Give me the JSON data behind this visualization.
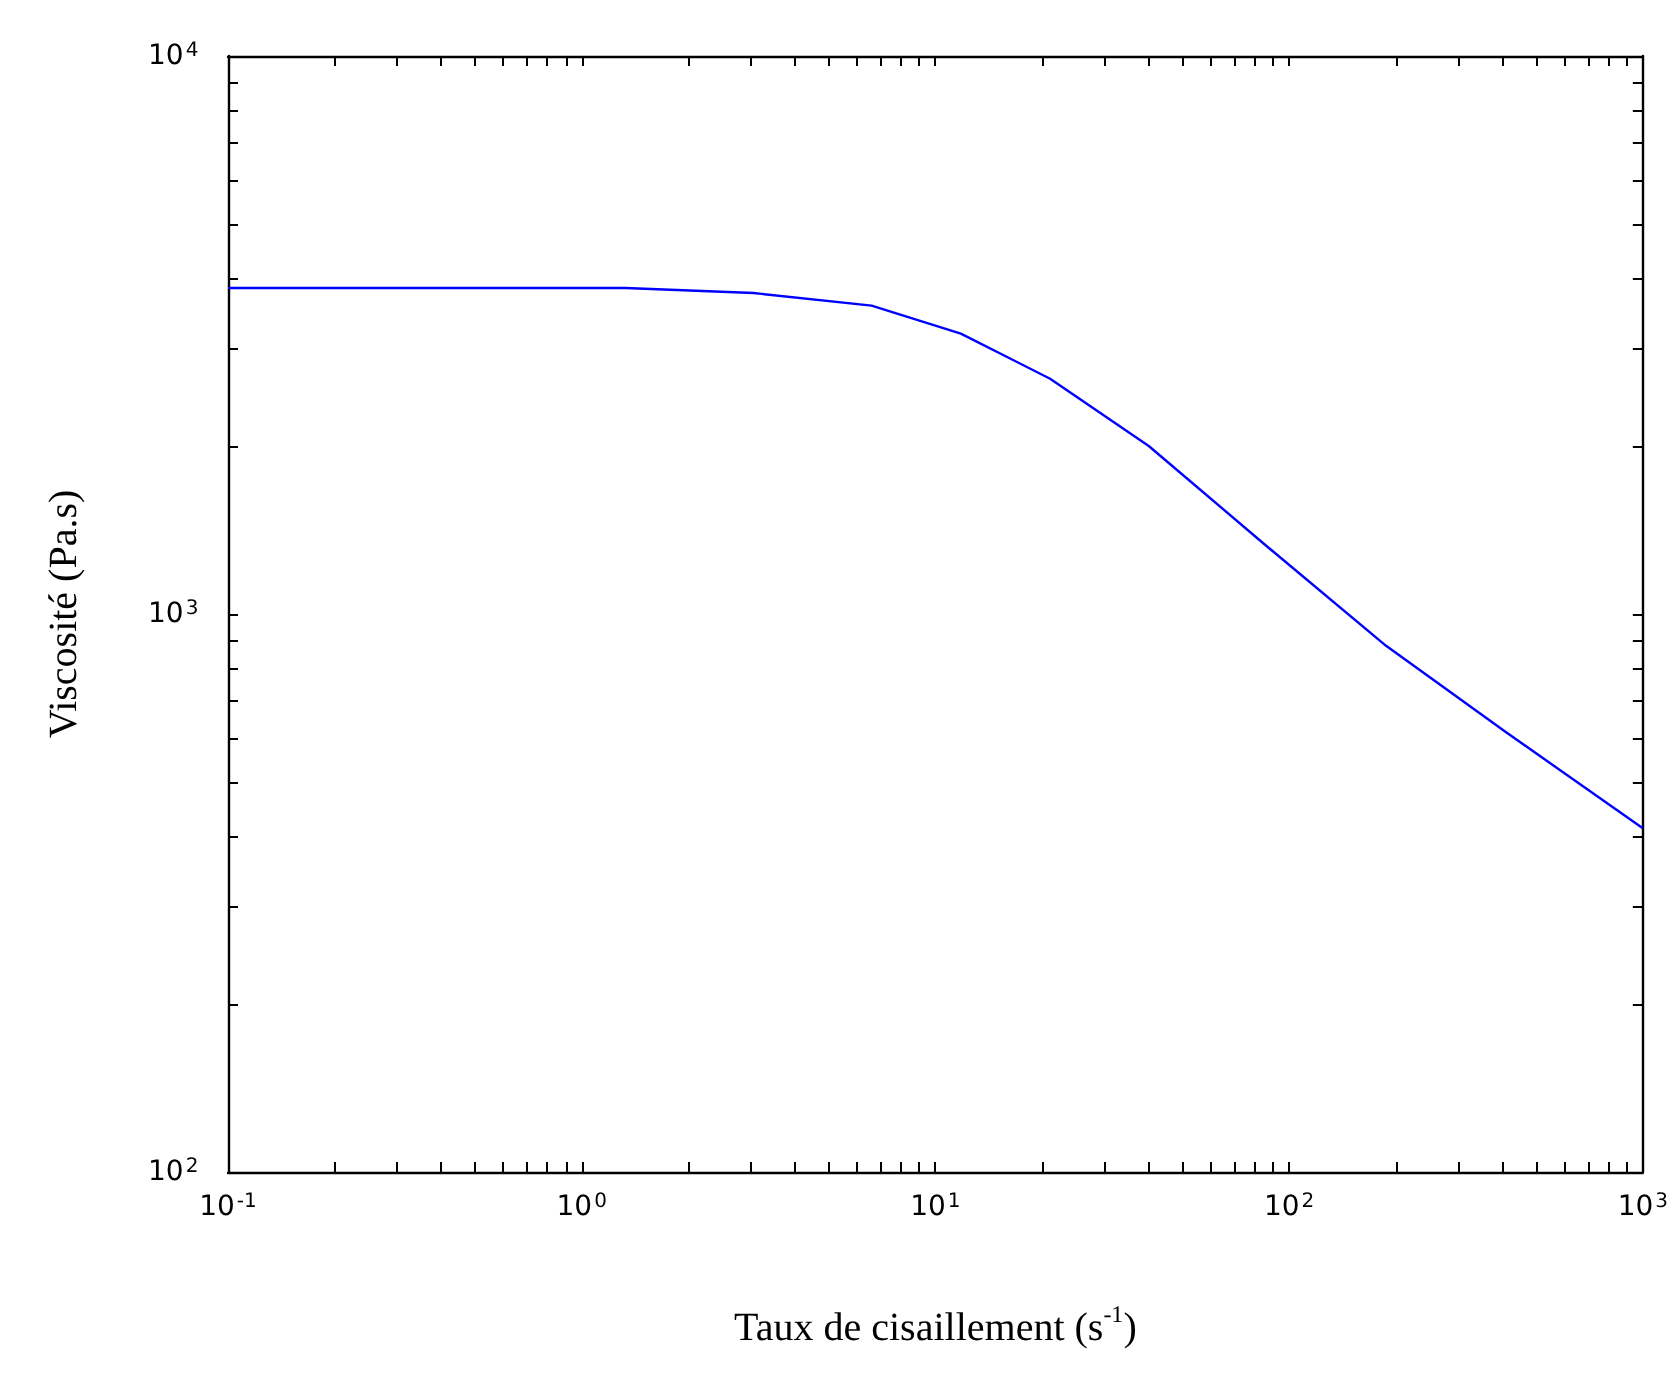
{
  "chart_data": {
    "type": "line",
    "xlabel": "Taux de cisaillement (s$^{-1}$)",
    "ylabel": "Viscosité (Pa.s)",
    "log": "xy",
    "grid": false,
    "marker": "none",
    "line_style": "solid",
    "xlim": [
      0.1,
      1000
    ],
    "ylim": [
      100,
      10000
    ],
    "xticks": [
      {
        "value": 0.1,
        "label": "10$^{-1}$"
      },
      {
        "value": 1,
        "label": "10$^{0}$"
      },
      {
        "value": 10,
        "label": "10$^{1}$"
      },
      {
        "value": 100,
        "label": "10$^{2}$"
      },
      {
        "value": 1000,
        "label": "10$^{3}$"
      }
    ],
    "yticks": [
      {
        "value": 100,
        "label": "10$^{2}$"
      },
      {
        "value": 1000,
        "label": "10$^{3}$"
      },
      {
        "value": 10000,
        "label": "10$^{4}$"
      }
    ],
    "series": [
      {
        "color": "#0000ff",
        "x": [
          0.1,
          0.3,
          1.33,
          3.06,
          6.6,
          11.8,
          21.1,
          40.1,
          86.8,
          188,
          406,
          1000
        ],
        "values": [
          3840,
          3840,
          3840,
          3760,
          3570,
          3180,
          2640,
          2000,
          1320,
          877,
          617,
          413
        ]
      }
    ]
  }
}
